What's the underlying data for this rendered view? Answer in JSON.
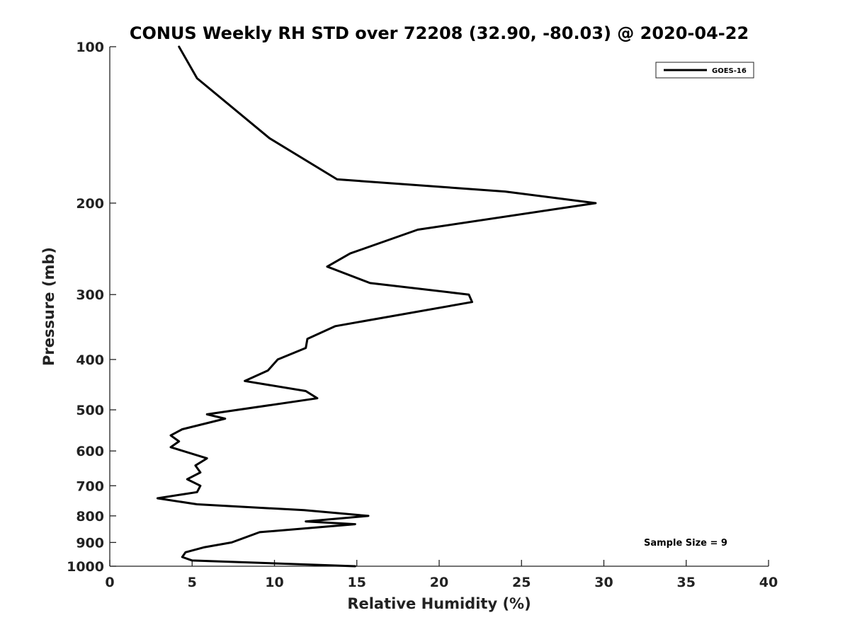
{
  "chart_data": {
    "type": "line",
    "title": "CONUS Weekly RH STD over 72208 (32.90, -80.03) @ 2020-04-22",
    "xlabel": "Relative Humidity (%)",
    "ylabel": "Pressure (mb)",
    "xlim": [
      0,
      40
    ],
    "ylim": [
      100,
      1000
    ],
    "y_scale": "log",
    "y_reversed": true,
    "grid": false,
    "legend_placement": "top-right",
    "x_ticks": [
      "0",
      "5",
      "10",
      "15",
      "20",
      "25",
      "30",
      "35",
      "40"
    ],
    "y_ticks": [
      "100",
      "200",
      "300",
      "400",
      "500",
      "600",
      "700",
      "800",
      "900",
      "1000"
    ],
    "series": [
      {
        "name": "GOES-16",
        "color": "#000000",
        "x": [
          4.2,
          5.3,
          9.7,
          13.8,
          24.0,
          29.5,
          18.7,
          14.6,
          13.2,
          15.8,
          21.8,
          22.0,
          13.7,
          12.0,
          11.9,
          10.2,
          9.6,
          8.2,
          11.9,
          12.6,
          5.9,
          7.0,
          4.4,
          3.7,
          4.2,
          3.7,
          5.9,
          5.2,
          5.5,
          4.7,
          5.5,
          5.3,
          2.9,
          5.3,
          11.8,
          15.7,
          11.9,
          14.9,
          9.1,
          7.4,
          5.7,
          4.6,
          4.4,
          5.0,
          14.9
        ],
        "y": [
          100,
          115,
          150,
          180,
          190,
          200,
          225,
          250,
          265,
          285,
          300,
          310,
          345,
          365,
          380,
          400,
          420,
          440,
          460,
          475,
          510,
          520,
          545,
          560,
          575,
          590,
          620,
          640,
          660,
          680,
          700,
          720,
          740,
          760,
          780,
          800,
          820,
          830,
          860,
          900,
          920,
          940,
          960,
          975,
          1000
        ]
      }
    ],
    "annotation": "Sample Size = 9"
  }
}
